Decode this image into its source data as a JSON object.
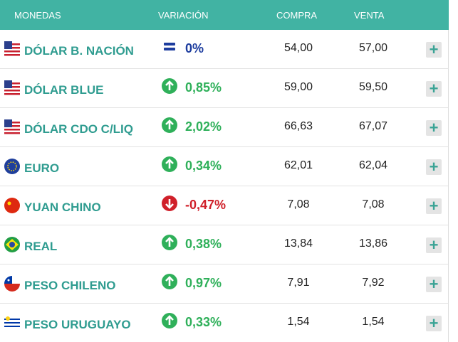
{
  "header": {
    "columns": [
      "MONEDAS",
      "VARIACIÓN",
      "COMPRA",
      "VENTA"
    ]
  },
  "table": {
    "rows": [
      {
        "flag": "us",
        "name": "DÓLAR B. NACIÓN",
        "trend": "equal",
        "variation": "0%",
        "compra": "54,00",
        "venta": "57,00"
      },
      {
        "flag": "us",
        "name": "DÓLAR BLUE",
        "trend": "up",
        "variation": "0,85%",
        "compra": "59,00",
        "venta": "59,50"
      },
      {
        "flag": "us",
        "name": "DÓLAR CDO C/LIQ",
        "trend": "up",
        "variation": "2,02%",
        "compra": "66,63",
        "venta": "67,07"
      },
      {
        "flag": "eu",
        "name": "EURO",
        "trend": "up",
        "variation": "0,34%",
        "compra": "62,01",
        "venta": "62,04"
      },
      {
        "flag": "cn",
        "name": "YUAN CHINO",
        "trend": "down",
        "variation": "-0,47%",
        "compra": "7,08",
        "venta": "7,08"
      },
      {
        "flag": "br",
        "name": "REAL",
        "trend": "up",
        "variation": "0,38%",
        "compra": "13,84",
        "venta": "13,86"
      },
      {
        "flag": "cl",
        "name": "PESO CHILENO",
        "trend": "up",
        "variation": "0,97%",
        "compra": "7,91",
        "venta": "7,92"
      },
      {
        "flag": "uy",
        "name": "PESO URUGUAYO",
        "trend": "up",
        "variation": "0,33%",
        "compra": "1,54",
        "venta": "1,54"
      }
    ]
  }
}
